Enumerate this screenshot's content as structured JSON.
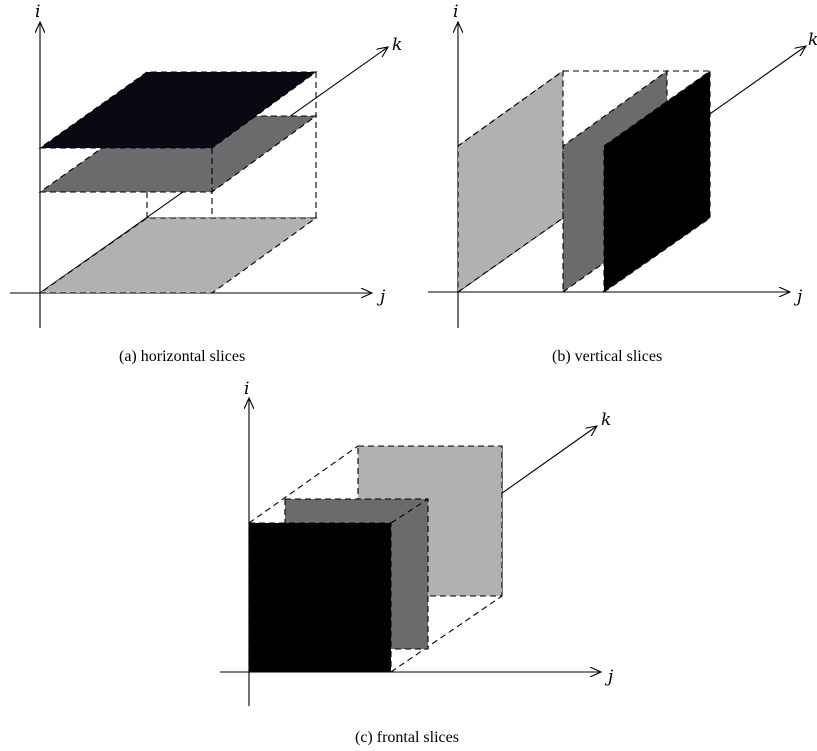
{
  "axis_labels": {
    "i": "i",
    "j": "j",
    "k": "k"
  },
  "captions": {
    "a": "(a)  horizontal slices",
    "b": "(b)  vertical slices",
    "c": "(c)  frontal slices"
  },
  "colors": {
    "light": "#afb1b3",
    "medium": "#6b6b6d",
    "dark": "#000000",
    "darkest_top": "#0b0713"
  }
}
